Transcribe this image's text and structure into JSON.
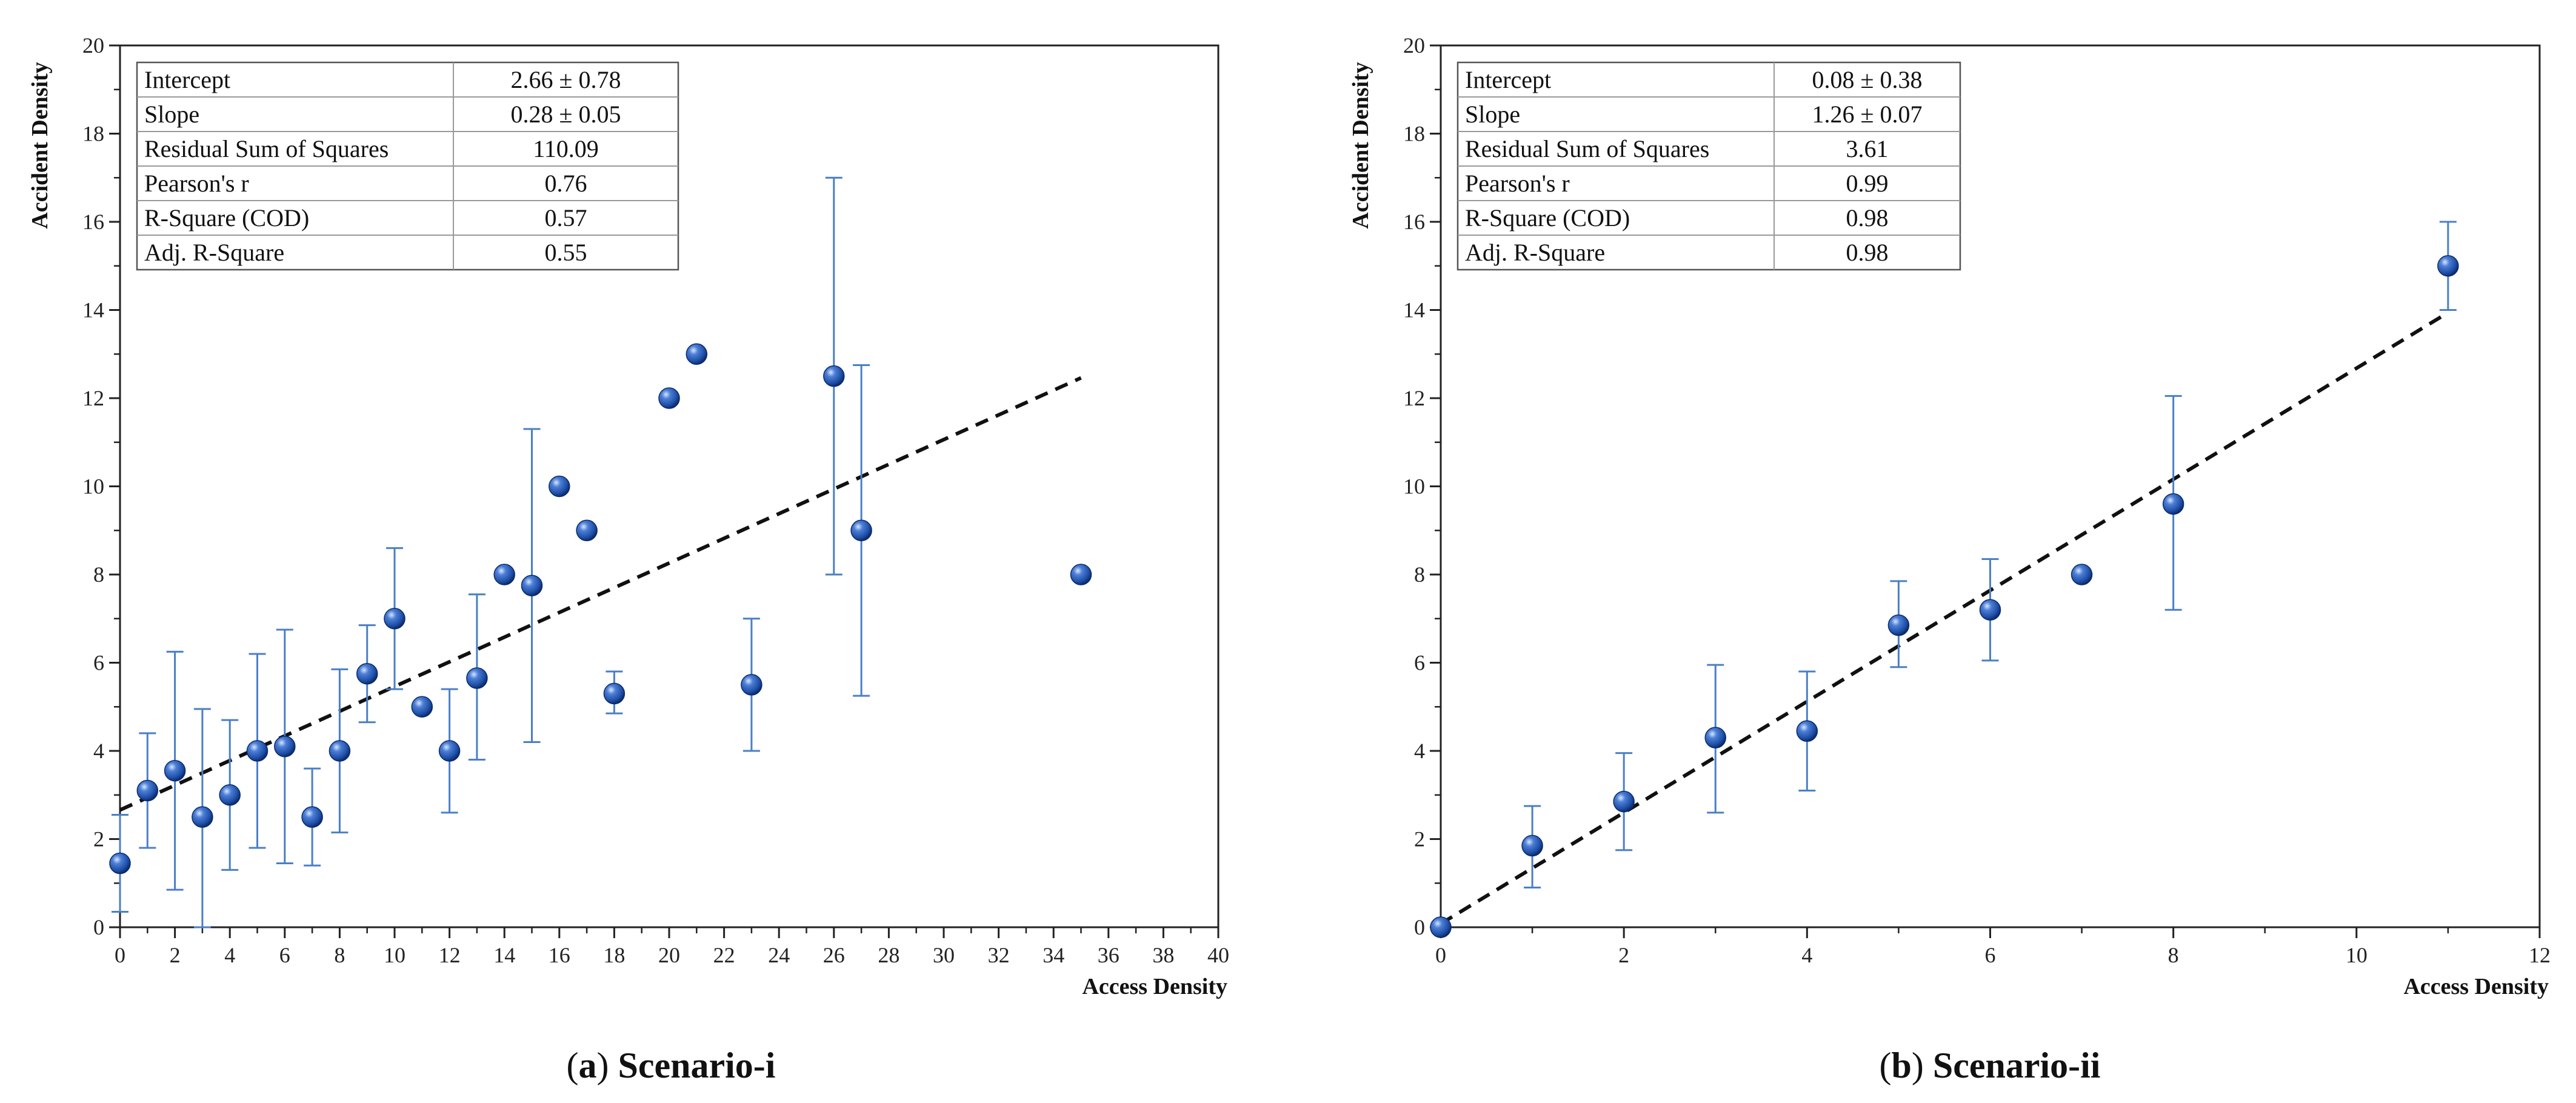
{
  "chart_data": [
    {
      "type": "scatter",
      "panel": "a",
      "caption_letter": "a",
      "caption_title": "Scenario-i",
      "xlabel": "Access Density",
      "ylabel": "Accident Density",
      "xlim": [
        0,
        40
      ],
      "ylim": [
        0,
        20
      ],
      "xticks": [
        0,
        2,
        4,
        6,
        8,
        10,
        12,
        14,
        16,
        18,
        20,
        22,
        24,
        26,
        28,
        30,
        32,
        34,
        36,
        38,
        40
      ],
      "yticks": [
        0,
        2,
        4,
        6,
        8,
        10,
        12,
        14,
        16,
        18,
        20
      ],
      "grid": false,
      "points": [
        {
          "x": 0,
          "y": 1.45,
          "err_low": 0.35,
          "err_high": 2.55
        },
        {
          "x": 1,
          "y": 3.1,
          "err_low": 1.8,
          "err_high": 4.4
        },
        {
          "x": 2,
          "y": 3.55,
          "err_low": 0.85,
          "err_high": 6.25
        },
        {
          "x": 3,
          "y": 2.5,
          "err_low": 0.0,
          "err_high": 4.95
        },
        {
          "x": 4,
          "y": 3.0,
          "err_low": 1.3,
          "err_high": 4.7
        },
        {
          "x": 5,
          "y": 4.0,
          "err_low": 1.8,
          "err_high": 6.2
        },
        {
          "x": 6,
          "y": 4.1,
          "err_low": 1.45,
          "err_high": 6.75
        },
        {
          "x": 7,
          "y": 2.5,
          "err_low": 1.4,
          "err_high": 3.6
        },
        {
          "x": 8,
          "y": 4.0,
          "err_low": 2.15,
          "err_high": 5.85
        },
        {
          "x": 9,
          "y": 5.75,
          "err_low": 4.65,
          "err_high": 6.85
        },
        {
          "x": 10,
          "y": 7.0,
          "err_low": 5.4,
          "err_high": 8.6
        },
        {
          "x": 11,
          "y": 5.0
        },
        {
          "x": 12,
          "y": 4.0,
          "err_low": 2.6,
          "err_high": 5.4
        },
        {
          "x": 13,
          "y": 5.65,
          "err_low": 3.8,
          "err_high": 7.55
        },
        {
          "x": 14,
          "y": 8.0
        },
        {
          "x": 15,
          "y": 7.75,
          "err_low": 4.2,
          "err_high": 11.3
        },
        {
          "x": 16,
          "y": 10.0
        },
        {
          "x": 17,
          "y": 9.0
        },
        {
          "x": 18,
          "y": 5.3,
          "err_low": 4.85,
          "err_high": 5.8
        },
        {
          "x": 20,
          "y": 12.0
        },
        {
          "x": 21,
          "y": 13.0
        },
        {
          "x": 23,
          "y": 5.5,
          "err_low": 4.0,
          "err_high": 7.0
        },
        {
          "x": 26,
          "y": 12.5,
          "err_low": 8.0,
          "err_high": 17.0
        },
        {
          "x": 27,
          "y": 9.0,
          "err_low": 5.25,
          "err_high": 12.75
        },
        {
          "x": 35,
          "y": 8.0
        }
      ],
      "fit_line": {
        "x_start": 0,
        "x_end": 35,
        "intercept": 2.66,
        "slope": 0.28
      },
      "stats_table": [
        {
          "label": "Intercept",
          "value": "2.66 ± 0.78"
        },
        {
          "label": "Slope",
          "value": "0.28 ± 0.05"
        },
        {
          "label": "Residual Sum of Squares",
          "value": "110.09"
        },
        {
          "label": "Pearson's r",
          "value": "0.76"
        },
        {
          "label": "R-Square (COD)",
          "value": "0.57"
        },
        {
          "label": "Adj. R-Square",
          "value": "0.55"
        }
      ]
    },
    {
      "type": "scatter",
      "panel": "b",
      "caption_letter": "b",
      "caption_title": "Scenario-ii",
      "xlabel": "Access Density",
      "ylabel": "Accident Density",
      "xlim": [
        0,
        12
      ],
      "ylim": [
        0,
        20
      ],
      "xticks": [
        0,
        2,
        4,
        6,
        8,
        10,
        12
      ],
      "yticks": [
        0,
        2,
        4,
        6,
        8,
        10,
        12,
        14,
        16,
        18,
        20
      ],
      "grid": false,
      "points": [
        {
          "x": 0,
          "y": 0
        },
        {
          "x": 1,
          "y": 1.85,
          "err_low": 0.9,
          "err_high": 2.75
        },
        {
          "x": 2,
          "y": 2.85,
          "err_low": 1.75,
          "err_high": 3.95
        },
        {
          "x": 3,
          "y": 4.3,
          "err_low": 2.6,
          "err_high": 5.95
        },
        {
          "x": 4,
          "y": 4.45,
          "err_low": 3.1,
          "err_high": 5.8
        },
        {
          "x": 5,
          "y": 6.85,
          "err_low": 5.9,
          "err_high": 7.85
        },
        {
          "x": 6,
          "y": 7.2,
          "err_low": 6.05,
          "err_high": 8.35
        },
        {
          "x": 7,
          "y": 8.0
        },
        {
          "x": 8,
          "y": 9.6,
          "err_low": 7.2,
          "err_high": 12.05
        },
        {
          "x": 11,
          "y": 15.0,
          "err_low": 14.0,
          "err_high": 16.0
        }
      ],
      "fit_line": {
        "x_start": 0,
        "x_end": 11,
        "intercept": 0.08,
        "slope": 1.26
      },
      "stats_table": [
        {
          "label": "Intercept",
          "value": "0.08 ± 0.38"
        },
        {
          "label": "Slope",
          "value": "1.26 ± 0.07"
        },
        {
          "label": "Residual Sum of Squares",
          "value": "3.61"
        },
        {
          "label": "Pearson's r",
          "value": "0.99"
        },
        {
          "label": "R-Square (COD)",
          "value": "0.98"
        },
        {
          "label": "Adj. R-Square",
          "value": "0.98"
        }
      ]
    }
  ],
  "colors": {
    "marker": "#1f4fa8",
    "marker_highlight": "#9cc0ff",
    "marker_dark": "#0b2a6b",
    "error_bar": "#4a7fc6",
    "fit_line": "#111111",
    "axis": "#222222"
  }
}
